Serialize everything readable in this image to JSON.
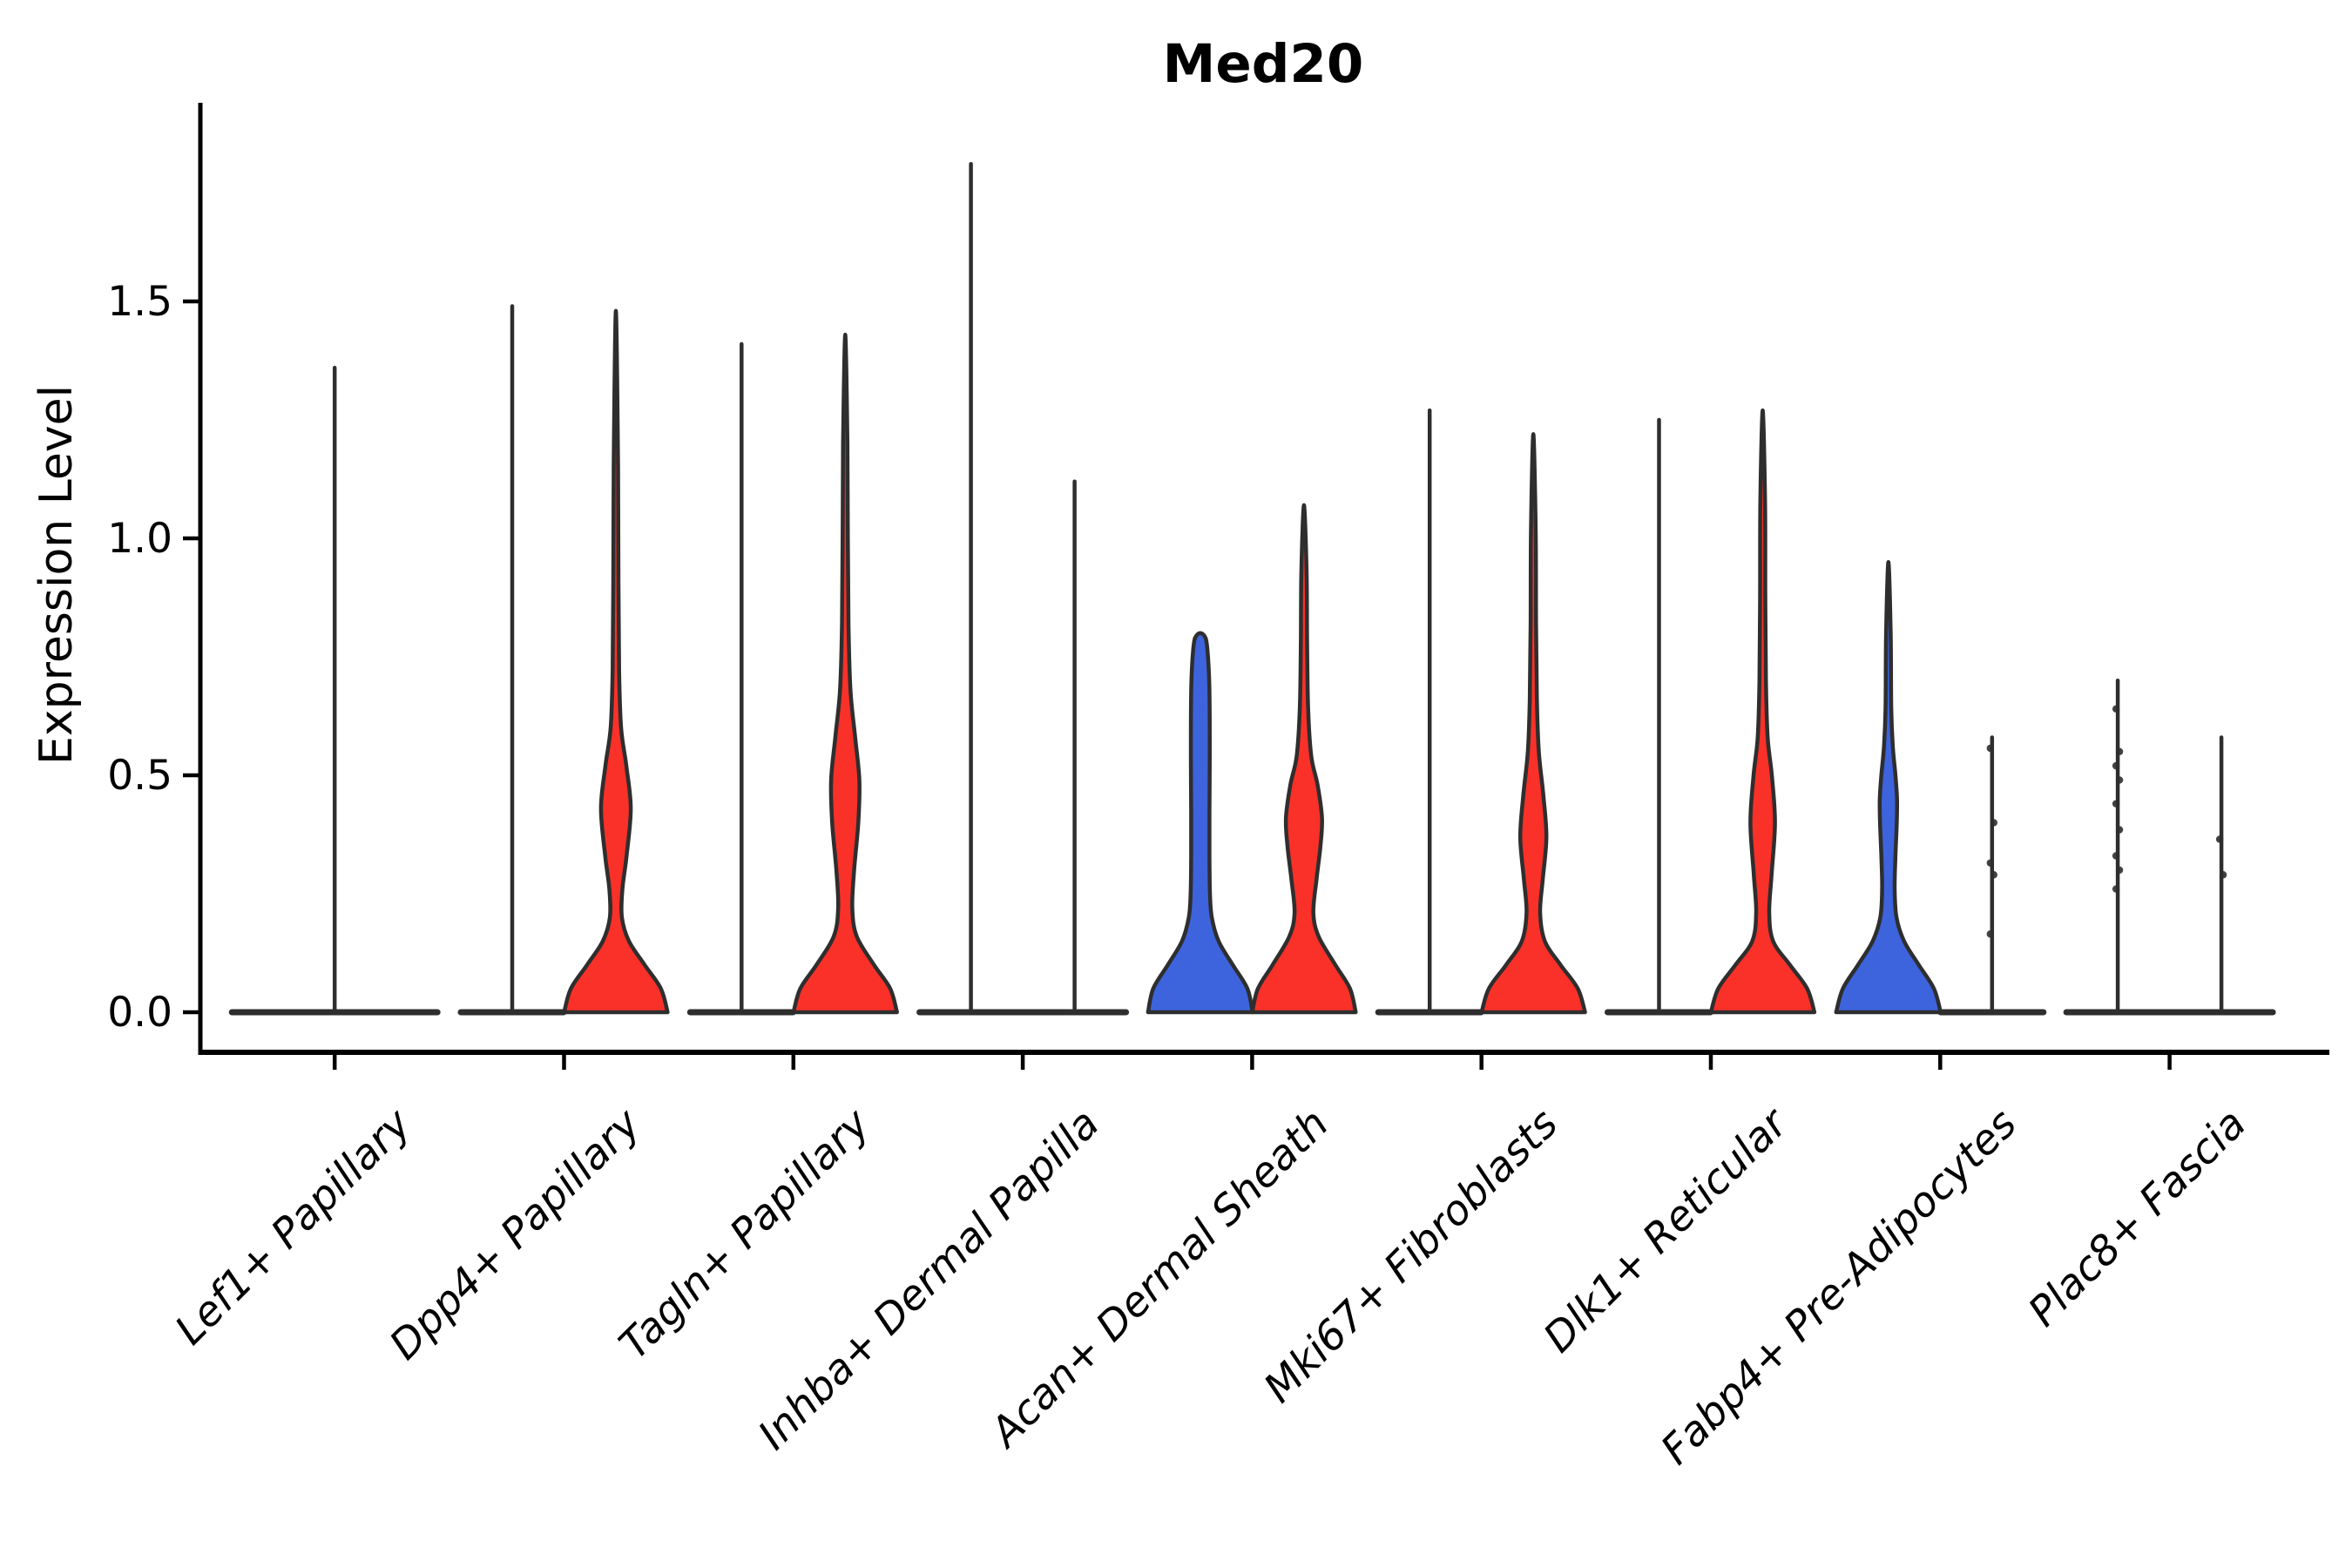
{
  "title": "Med20",
  "y_axis": {
    "label": "Expression Level",
    "tick_labels": [
      "0.0",
      "0.5",
      "1.0",
      "1.5"
    ]
  },
  "colors": {
    "red": "#f93129",
    "blue": "#3d64dd",
    "outline": "#2e2e2e",
    "axis": "#000000"
  },
  "chart_data": {
    "type": "violin",
    "title": "Med20",
    "ylabel": "Expression Level",
    "ylim": [
      -0.13,
      1.92
    ],
    "yticks": [
      0.0,
      0.5,
      1.0,
      1.5
    ],
    "grid": false,
    "legend": "none",
    "x_tick_rotation": 45,
    "categories": [
      "Lef1+ Papillary",
      "Dpp4+ Papillary",
      "Tagln+ Papillary",
      "Inhba+ Dermal Papilla",
      "Acan+ Dermal Sheath",
      "Mki67+ Fibroblasts",
      "Dlk1+ Reticular",
      "Fabp4+ Pre-Adipocytes",
      "Plac8+ Fascia"
    ],
    "violins": [
      {
        "category": 0,
        "side": "center",
        "kind": "flat",
        "span": 2,
        "fill": "none",
        "max": 1.36,
        "dots": []
      },
      {
        "category": 1,
        "side": "left",
        "kind": "flat",
        "span": 1,
        "fill": "none",
        "max": 1.49,
        "dots": []
      },
      {
        "category": 1,
        "side": "right",
        "kind": "shaped",
        "fill": "red",
        "max": 1.48,
        "dots": [],
        "profile": [
          [
            0,
            0.99
          ],
          [
            0.05,
            0.86
          ],
          [
            0.1,
            0.55
          ],
          [
            0.15,
            0.25
          ],
          [
            0.2,
            0.115
          ],
          [
            0.26,
            0.125
          ],
          [
            0.33,
            0.205
          ],
          [
            0.43,
            0.285
          ],
          [
            0.52,
            0.2
          ],
          [
            0.6,
            0.1
          ],
          [
            0.72,
            0.062
          ],
          [
            0.9,
            0.05
          ],
          [
            1.15,
            0.042
          ],
          [
            1.48,
            0.04
          ]
        ]
      },
      {
        "category": 2,
        "side": "left",
        "kind": "flat",
        "span": 1,
        "fill": "none",
        "max": 1.41,
        "dots": []
      },
      {
        "category": 2,
        "side": "right",
        "kind": "shaped",
        "fill": "red",
        "max": 1.43,
        "dots": [],
        "profile": [
          [
            0,
            0.99
          ],
          [
            0.05,
            0.86
          ],
          [
            0.1,
            0.55
          ],
          [
            0.16,
            0.22
          ],
          [
            0.22,
            0.135
          ],
          [
            0.3,
            0.17
          ],
          [
            0.4,
            0.25
          ],
          [
            0.49,
            0.27
          ],
          [
            0.58,
            0.19
          ],
          [
            0.68,
            0.1
          ],
          [
            0.82,
            0.062
          ],
          [
            1.0,
            0.05
          ],
          [
            1.2,
            0.042
          ],
          [
            1.43,
            0.04
          ]
        ]
      },
      {
        "category": 3,
        "side": "left",
        "kind": "flat",
        "span": 1,
        "fill": "none",
        "max": 1.79,
        "dots": []
      },
      {
        "category": 3,
        "side": "right",
        "kind": "flat",
        "span": 1,
        "fill": "none",
        "max": 1.12,
        "dots": []
      },
      {
        "category": 4,
        "side": "left",
        "kind": "shaped",
        "fill": "blue",
        "max": 0.8,
        "capped": true,
        "dots": [],
        "profile": [
          [
            0,
            1.0
          ],
          [
            0.05,
            0.9
          ],
          [
            0.1,
            0.62
          ],
          [
            0.15,
            0.35
          ],
          [
            0.2,
            0.22
          ],
          [
            0.25,
            0.185
          ],
          [
            0.33,
            0.175
          ],
          [
            0.42,
            0.175
          ],
          [
            0.52,
            0.18
          ],
          [
            0.62,
            0.18
          ],
          [
            0.7,
            0.17
          ],
          [
            0.76,
            0.14
          ],
          [
            0.79,
            0.1
          ],
          [
            0.8,
            0.0
          ]
        ]
      },
      {
        "category": 4,
        "side": "right",
        "kind": "shaped",
        "fill": "red",
        "max": 1.07,
        "dots": [],
        "profile": [
          [
            0,
            0.99
          ],
          [
            0.05,
            0.88
          ],
          [
            0.1,
            0.6
          ],
          [
            0.16,
            0.28
          ],
          [
            0.21,
            0.18
          ],
          [
            0.28,
            0.24
          ],
          [
            0.35,
            0.315
          ],
          [
            0.41,
            0.345
          ],
          [
            0.48,
            0.26
          ],
          [
            0.54,
            0.14
          ],
          [
            0.64,
            0.08
          ],
          [
            0.78,
            0.06
          ],
          [
            0.93,
            0.05
          ],
          [
            1.07,
            0.045
          ]
        ]
      },
      {
        "category": 5,
        "side": "left",
        "kind": "flat",
        "span": 1,
        "fill": "none",
        "max": 1.27,
        "dots": []
      },
      {
        "category": 5,
        "side": "right",
        "kind": "shaped",
        "fill": "red",
        "max": 1.22,
        "dots": [],
        "profile": [
          [
            0,
            0.99
          ],
          [
            0.05,
            0.85
          ],
          [
            0.1,
            0.52
          ],
          [
            0.15,
            0.22
          ],
          [
            0.21,
            0.13
          ],
          [
            0.28,
            0.18
          ],
          [
            0.37,
            0.25
          ],
          [
            0.46,
            0.19
          ],
          [
            0.55,
            0.105
          ],
          [
            0.66,
            0.068
          ],
          [
            0.82,
            0.052
          ],
          [
            1.02,
            0.045
          ],
          [
            1.22,
            0.04
          ]
        ]
      },
      {
        "category": 6,
        "side": "left",
        "kind": "flat",
        "span": 1,
        "fill": "none",
        "max": 1.25,
        "dots": []
      },
      {
        "category": 6,
        "side": "right",
        "kind": "shaped",
        "fill": "red",
        "max": 1.27,
        "dots": [],
        "profile": [
          [
            0,
            0.99
          ],
          [
            0.05,
            0.85
          ],
          [
            0.1,
            0.52
          ],
          [
            0.15,
            0.2
          ],
          [
            0.21,
            0.125
          ],
          [
            0.29,
            0.17
          ],
          [
            0.4,
            0.235
          ],
          [
            0.5,
            0.175
          ],
          [
            0.58,
            0.095
          ],
          [
            0.7,
            0.062
          ],
          [
            0.88,
            0.05
          ],
          [
            1.08,
            0.045
          ],
          [
            1.27,
            0.04
          ]
        ]
      },
      {
        "category": 7,
        "side": "left",
        "kind": "shaped",
        "fill": "blue",
        "max": 0.95,
        "dots": [],
        "profile": [
          [
            0,
            1.0
          ],
          [
            0.05,
            0.87
          ],
          [
            0.1,
            0.58
          ],
          [
            0.15,
            0.3
          ],
          [
            0.2,
            0.155
          ],
          [
            0.26,
            0.12
          ],
          [
            0.33,
            0.135
          ],
          [
            0.4,
            0.16
          ],
          [
            0.45,
            0.165
          ],
          [
            0.5,
            0.135
          ],
          [
            0.56,
            0.085
          ],
          [
            0.64,
            0.055
          ],
          [
            0.8,
            0.044
          ],
          [
            0.95,
            0.04
          ]
        ]
      },
      {
        "category": 7,
        "side": "right",
        "kind": "flat",
        "span": 1,
        "fill": "none",
        "max": 0.58,
        "dots": [
          0.557,
          0.4,
          0.315,
          0.29,
          0.165
        ]
      },
      {
        "category": 8,
        "side": "left",
        "kind": "flat",
        "span": 1,
        "fill": "none",
        "max": 0.7,
        "dots": [
          0.64,
          0.55,
          0.52,
          0.49,
          0.44,
          0.385,
          0.33,
          0.3,
          0.26
        ]
      },
      {
        "category": 8,
        "side": "right",
        "kind": "flat",
        "span": 1,
        "fill": "none",
        "max": 0.58,
        "dots": [
          0.365,
          0.29
        ]
      }
    ]
  }
}
